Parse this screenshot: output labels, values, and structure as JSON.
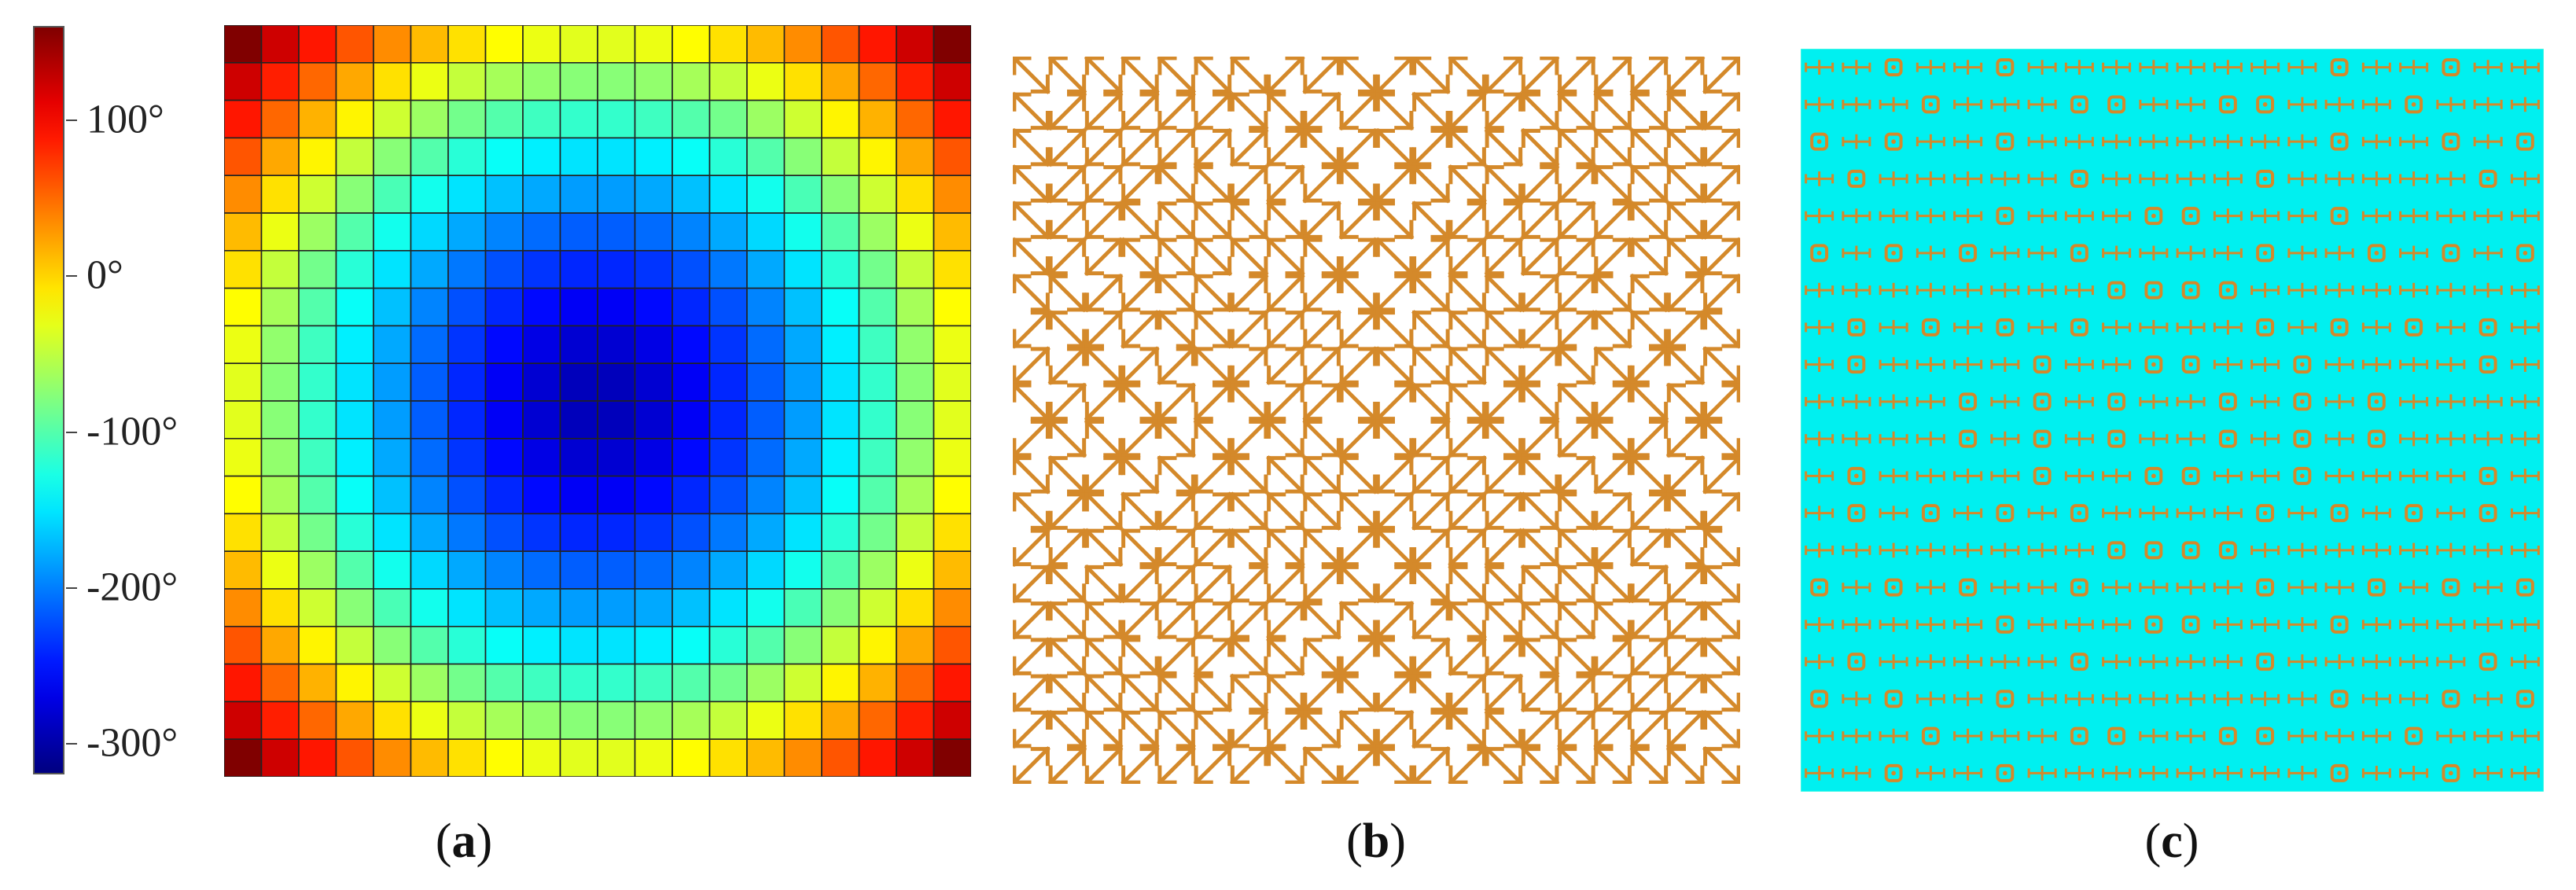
{
  "figure": {
    "colorbar": {
      "ticks": [
        "100°",
        "0°",
        "-100°",
        "-200°",
        "-300°"
      ],
      "range": [
        -320,
        160
      ],
      "colormap": "jet"
    },
    "panels": [
      {
        "id": "a",
        "caption_open": "(",
        "caption_letter": "a",
        "caption_close": ")"
      },
      {
        "id": "b",
        "caption_open": "(",
        "caption_letter": "b",
        "caption_close": ")"
      },
      {
        "id": "c",
        "caption_open": "(",
        "caption_letter": "c",
        "caption_close": ")"
      }
    ],
    "grid_size": 20,
    "colors": {
      "element": "#d4892a",
      "substrate": "#00f0f0"
    }
  }
}
